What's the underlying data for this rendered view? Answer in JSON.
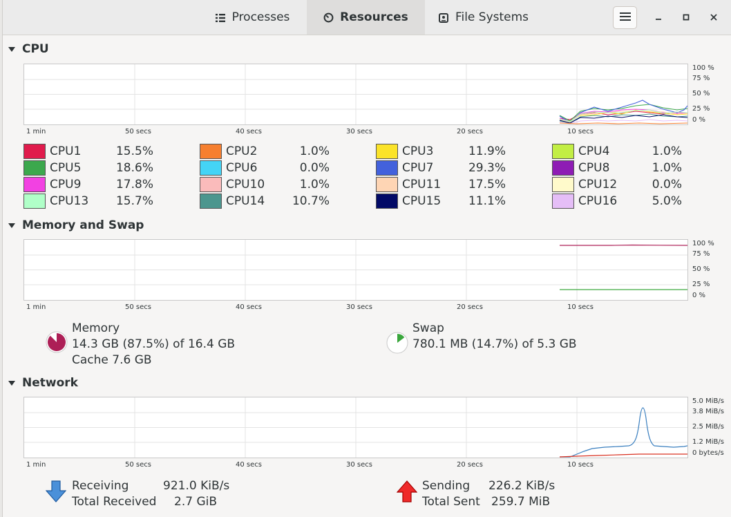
{
  "header": {
    "tabs": [
      {
        "label": "Processes",
        "icon": "list-icon"
      },
      {
        "label": "Resources",
        "icon": "gauge-icon"
      },
      {
        "label": "File Systems",
        "icon": "disk-icon"
      }
    ],
    "active_tab": "Resources"
  },
  "cpu": {
    "title": "CPU",
    "y_ticks": [
      "100 %",
      "75 %",
      "50 %",
      "25 %",
      "0 %"
    ],
    "x_ticks": [
      "1 min",
      "50 secs",
      "40 secs",
      "30 secs",
      "20 secs",
      "10 secs"
    ],
    "cores": [
      {
        "name": "CPU1",
        "value": "15.5%",
        "color": "#e01b4c"
      },
      {
        "name": "CPU2",
        "value": "1.0%",
        "color": "#f67f2f"
      },
      {
        "name": "CPU3",
        "value": "11.9%",
        "color": "#fbe329"
      },
      {
        "name": "CPU4",
        "value": "1.0%",
        "color": "#c2ee44"
      },
      {
        "name": "CPU5",
        "value": "18.6%",
        "color": "#3ca84d"
      },
      {
        "name": "CPU6",
        "value": "0.0%",
        "color": "#44d4f6"
      },
      {
        "name": "CPU7",
        "value": "29.3%",
        "color": "#4361dc"
      },
      {
        "name": "CPU8",
        "value": "1.0%",
        "color": "#8e1cb4"
      },
      {
        "name": "CPU9",
        "value": "17.8%",
        "color": "#f241e2"
      },
      {
        "name": "CPU10",
        "value": "1.0%",
        "color": "#fabbbb"
      },
      {
        "name": "CPU11",
        "value": "17.5%",
        "color": "#fed5b4"
      },
      {
        "name": "CPU12",
        "value": "0.0%",
        "color": "#fffacb"
      },
      {
        "name": "CPU13",
        "value": "15.7%",
        "color": "#b0ffc8"
      },
      {
        "name": "CPU14",
        "value": "10.7%",
        "color": "#4c968e"
      },
      {
        "name": "CPU15",
        "value": "11.1%",
        "color": "#020a66"
      },
      {
        "name": "CPU16",
        "value": "5.0%",
        "color": "#e5bef7"
      }
    ]
  },
  "memory": {
    "title": "Memory and Swap",
    "y_ticks": [
      "100 %",
      "75 %",
      "50 %",
      "25 %",
      "0 %"
    ],
    "x_ticks": [
      "1 min",
      "50 secs",
      "40 secs",
      "30 secs",
      "20 secs",
      "10 secs"
    ],
    "memory_label": "Memory",
    "memory_usage": "14.3 GB (87.5%) of 16.4 GB",
    "memory_cache": "Cache 7.6 GB",
    "memory_fraction": 0.875,
    "memory_color": "#ad1f56",
    "swap_label": "Swap",
    "swap_usage": "780.1 MB (14.7%) of 5.3 GB",
    "swap_fraction": 0.147,
    "swap_color": "#3aa63c"
  },
  "network": {
    "title": "Network",
    "y_ticks": [
      "5.0 MiB/s",
      "3.8 MiB/s",
      "2.5 MiB/s",
      "1.2 MiB/s",
      "0 bytes/s"
    ],
    "x_ticks": [
      "1 min",
      "50 secs",
      "40 secs",
      "30 secs",
      "20 secs",
      "10 secs"
    ],
    "receiving_label": "Receiving",
    "receiving_value": "921.0 KiB/s",
    "total_received_label": "Total Received",
    "total_received_value": "2.7 GiB",
    "sending_label": "Sending",
    "sending_value": "226.2 KiB/s",
    "total_sent_label": "Total Sent",
    "total_sent_value": "259.7 MiB",
    "receive_color": "#3a7fbf",
    "send_color": "#d93020"
  }
}
